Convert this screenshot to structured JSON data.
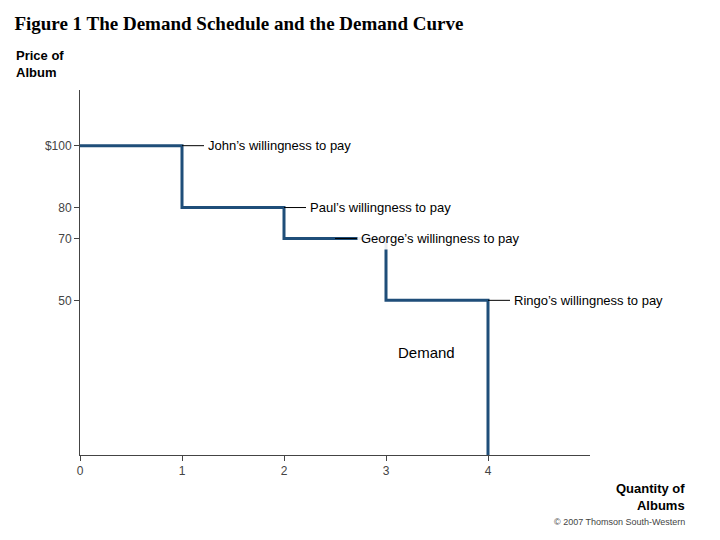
{
  "chart_data": {
    "type": "line",
    "title": "Figure 1 The Demand Schedule and the Demand Curve",
    "ylabel": [
      "Price of",
      "Album"
    ],
    "xlabel": [
      "Quantity of",
      "Albums"
    ],
    "caption": "© 2007 Thomson South-Western",
    "series": [
      {
        "name": "Demand",
        "color": "#1F4E79",
        "x": [
          0,
          1,
          1,
          2,
          2,
          3,
          3,
          4,
          4
        ],
        "values": [
          100,
          100,
          80,
          80,
          70,
          70,
          50,
          50,
          0
        ],
        "label": {
          "x": 3.1,
          "y": 33
        }
      }
    ],
    "annotations": [
      {
        "text": "John’s willingness to pay",
        "x": 1.0,
        "y": 100
      },
      {
        "text": "Paul’s willingness to pay",
        "x": 2.0,
        "y": 80
      },
      {
        "text": "George’s willingness to pay",
        "x": 2.5,
        "y": 70
      },
      {
        "text": "Ringo’s willingness to pay",
        "x": 4.0,
        "y": 50
      }
    ],
    "xlim": [
      0,
      5.0
    ],
    "ylim": [
      0,
      118
    ],
    "xticks": [
      0,
      1,
      2,
      3,
      4
    ],
    "yticks": [
      50,
      70,
      80,
      {
        "value": 100,
        "label": "$100"
      }
    ],
    "grid": false
  }
}
